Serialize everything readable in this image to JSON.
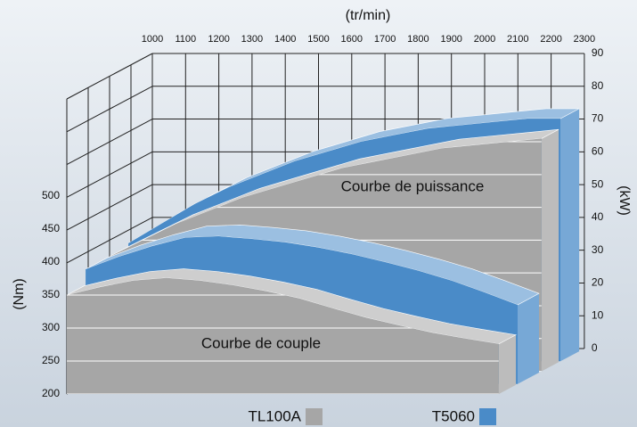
{
  "chart_data": {
    "type": "ribbon3d",
    "x_label": "(tr/min)",
    "y_label": "(Nm)",
    "y2_label": "(kW)",
    "categories": [
      "1000",
      "1100",
      "1200",
      "1300",
      "1400",
      "1500",
      "1600",
      "1700",
      "1800",
      "1900",
      "2000",
      "2100",
      "2200",
      "2300"
    ],
    "ylim": [
      200,
      500
    ],
    "yticks": [
      200,
      250,
      300,
      350,
      400,
      450,
      500
    ],
    "y2lim": [
      0,
      90
    ],
    "y2ticks": [
      0,
      10,
      20,
      30,
      40,
      50,
      60,
      70,
      80,
      90
    ],
    "annotations": [
      "Courbe de puissance",
      "Courbe de couple"
    ],
    "series": [
      {
        "name": "TL100A",
        "color": "#a6a6a6",
        "values": [
          350,
          362,
          372,
          376,
          372,
          365,
          356,
          345,
          330,
          316,
          304,
          293,
          284,
          276
        ],
        "y2_values": [
          35,
          40,
          45,
          49,
          53,
          56,
          59,
          62,
          64,
          66,
          68,
          69,
          70,
          71
        ]
      },
      {
        "name": "T5060",
        "color": "#4a8bc8",
        "values": [
          374,
          393,
          409,
          422,
          424,
          420,
          415,
          407,
          397,
          385,
          372,
          357,
          339,
          320
        ],
        "y2_values": [
          36,
          42,
          48,
          53,
          57,
          61,
          64,
          67,
          69,
          71,
          72,
          73,
          74,
          74
        ]
      }
    ]
  }
}
